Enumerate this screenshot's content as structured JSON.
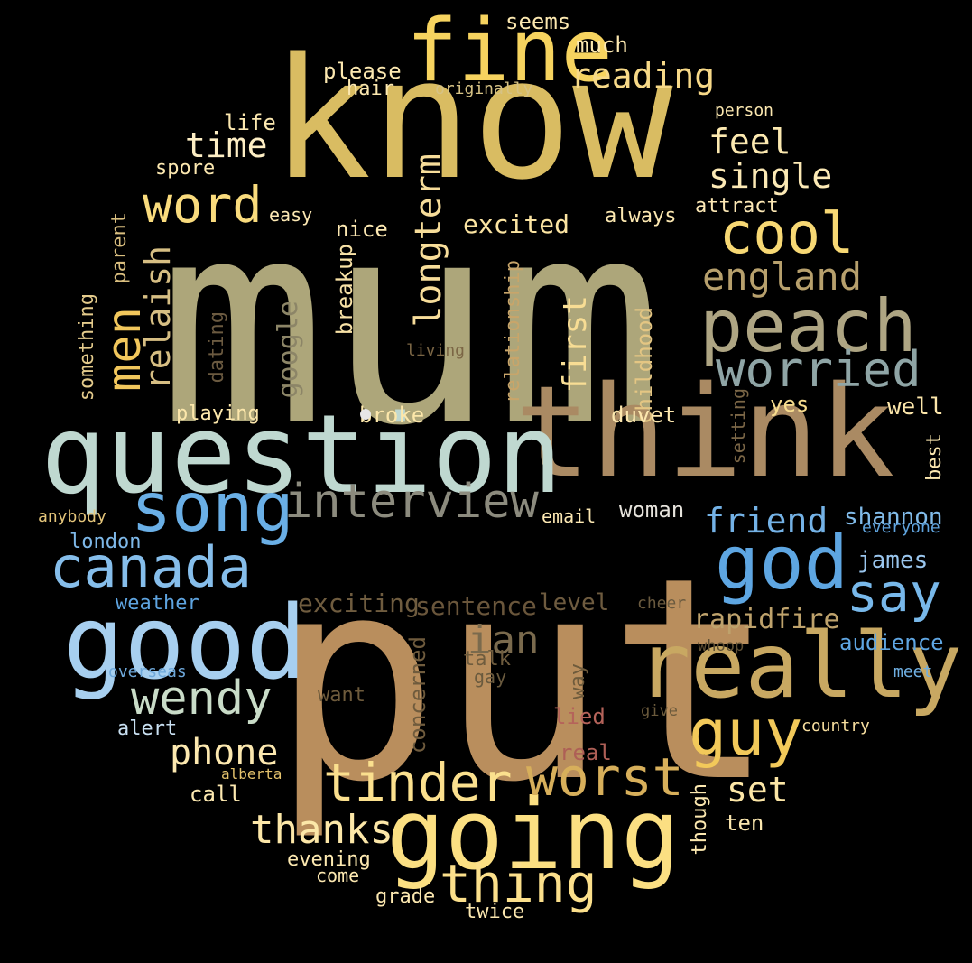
{
  "words": [
    {
      "text": "mum",
      "color": "#ADA67A"
    },
    {
      "text": "put",
      "color": "#B98E5D"
    },
    {
      "text": "know",
      "color": "#D9BC62"
    },
    {
      "text": "think",
      "color": "#AA8A63"
    },
    {
      "text": "question",
      "color": "#BFD8D0"
    },
    {
      "text": "going",
      "color": "#FBDF82"
    },
    {
      "text": "good",
      "color": "#A7CFEF"
    },
    {
      "text": "really",
      "color": "#C8A862"
    },
    {
      "text": "fine",
      "color": "#F6D35F"
    },
    {
      "text": "peach",
      "color": "#AEA583"
    },
    {
      "text": "song",
      "color": "#6AAFE6"
    },
    {
      "text": "god",
      "color": "#5EA6E2"
    },
    {
      "text": "canada",
      "color": "#86BEEB"
    },
    {
      "text": "cool",
      "color": "#F7D874"
    },
    {
      "text": "tinder",
      "color": "#FBE08E"
    },
    {
      "text": "worst",
      "color": "#D7AF5B"
    },
    {
      "text": "interview",
      "color": "#8C8B7E"
    },
    {
      "text": "worried",
      "color": "#8FA5A6"
    },
    {
      "text": "wendy",
      "color": "#C9DCC8"
    },
    {
      "text": "guy",
      "color": "#F2C95A"
    },
    {
      "text": "say",
      "color": "#78B8EA"
    },
    {
      "text": "thing",
      "color": "#FBDF8B"
    },
    {
      "text": "word",
      "color": "#F9DB7D"
    },
    {
      "text": "men",
      "color": "#F2C75C"
    },
    {
      "text": "phone",
      "color": "#FCE8AF"
    },
    {
      "text": "thanks",
      "color": "#FCE7A8"
    },
    {
      "text": "england",
      "color": "#B7A06D"
    },
    {
      "text": "longterm",
      "color": "#F7DD9A"
    },
    {
      "text": "relaish",
      "color": "#D6BE83"
    },
    {
      "text": "time",
      "color": "#FDEEC4"
    },
    {
      "text": "reading",
      "color": "#F7D988"
    },
    {
      "text": "feel",
      "color": "#FCE9B0"
    },
    {
      "text": "single",
      "color": "#FCE9B5"
    },
    {
      "text": "friend",
      "color": "#74B2E6"
    },
    {
      "text": "first",
      "color": "#F8DD94"
    },
    {
      "text": "set",
      "color": "#FCE6A6"
    },
    {
      "text": "rapidfire",
      "color": "#BEA26C"
    },
    {
      "text": "ian",
      "color": "#7A6A4D"
    },
    {
      "text": "google",
      "color": "#8C8567"
    },
    {
      "text": "exciting",
      "color": "#6F5C3F"
    },
    {
      "text": "sentence",
      "color": "#6A563B"
    },
    {
      "text": "excited",
      "color": "#FBE4A2"
    },
    {
      "text": "shannon",
      "color": "#81BBE9"
    },
    {
      "text": "james",
      "color": "#9AC6EE"
    },
    {
      "text": "audience",
      "color": "#5FA6E3"
    },
    {
      "text": "childhood",
      "color": "#E4C683"
    },
    {
      "text": "relationship",
      "color": "#C8A56A"
    },
    {
      "text": "breakup",
      "color": "#F8E2A6"
    },
    {
      "text": "concerned",
      "color": "#6F5B3D"
    },
    {
      "text": "duvet",
      "color": "#FCE7AE"
    },
    {
      "text": "level",
      "color": "#6E5B3F"
    },
    {
      "text": "yes",
      "color": "#F8DD8E"
    },
    {
      "text": "well",
      "color": "#FCE6AA"
    },
    {
      "text": "woman",
      "color": "#E6E3DC"
    },
    {
      "text": "broke",
      "color": "#FCE7AA"
    },
    {
      "text": "playing",
      "color": "#FCE7AB"
    },
    {
      "text": "nice",
      "color": "#FCE8B2"
    },
    {
      "text": "always",
      "color": "#FCE8B1"
    },
    {
      "text": "attract",
      "color": "#FCE8B5"
    },
    {
      "text": "easy",
      "color": "#FCE8B3"
    },
    {
      "text": "please",
      "color": "#FCE8B0"
    },
    {
      "text": "much",
      "color": "#FCE8B0"
    },
    {
      "text": "seems",
      "color": "#FCE8B0"
    },
    {
      "text": "hair",
      "color": "#FCE8B0"
    },
    {
      "text": "originally",
      "color": "#D6C285"
    },
    {
      "text": "life",
      "color": "#FCE8B0"
    },
    {
      "text": "spore",
      "color": "#FCE8B0"
    },
    {
      "text": "person",
      "color": "#FCE8B0"
    },
    {
      "text": "parent",
      "color": "#D9BE7F"
    },
    {
      "text": "something",
      "color": "#E4CB8C"
    },
    {
      "text": "dating",
      "color": "#6B5A40"
    },
    {
      "text": "living",
      "color": "#7B6645"
    },
    {
      "text": "setting",
      "color": "#7B6646"
    },
    {
      "text": "best",
      "color": "#FCE8B0"
    },
    {
      "text": "email",
      "color": "#FCE8B3"
    },
    {
      "text": "london",
      "color": "#7EB8E8"
    },
    {
      "text": "anybody",
      "color": "#E4C57A"
    },
    {
      "text": "weather",
      "color": "#5EA4E0"
    },
    {
      "text": "everyone",
      "color": "#5FA3DD"
    },
    {
      "text": "cheer",
      "color": "#6A5A3F"
    },
    {
      "text": "whoop",
      "color": "#5F5035"
    },
    {
      "text": "meet",
      "color": "#6FAFE2"
    },
    {
      "text": "overseas",
      "color": "#6EA8DA"
    },
    {
      "text": "alert",
      "color": "#C9E0F2"
    },
    {
      "text": "talk",
      "color": "#6F5C3E"
    },
    {
      "text": "gay",
      "color": "#6A5A3E"
    },
    {
      "text": "want",
      "color": "#6E5B3C"
    },
    {
      "text": "way",
      "color": "#6E5B3C"
    },
    {
      "text": "lied",
      "color": "#B5635A"
    },
    {
      "text": "real",
      "color": "#AE5F56"
    },
    {
      "text": "give",
      "color": "#6B5A3C"
    },
    {
      "text": "country",
      "color": "#F7DE9F"
    },
    {
      "text": "alberta",
      "color": "#E5C36D"
    },
    {
      "text": "call",
      "color": "#FCE8B0"
    },
    {
      "text": "evening",
      "color": "#FCE8B0"
    },
    {
      "text": "come",
      "color": "#FCE8B0"
    },
    {
      "text": "grade",
      "color": "#FCE8B0"
    },
    {
      "text": "twice",
      "color": "#FCE8B0"
    },
    {
      "text": "though",
      "color": "#FCE8B0"
    },
    {
      "text": "ten",
      "color": "#FCE8B0"
    }
  ]
}
